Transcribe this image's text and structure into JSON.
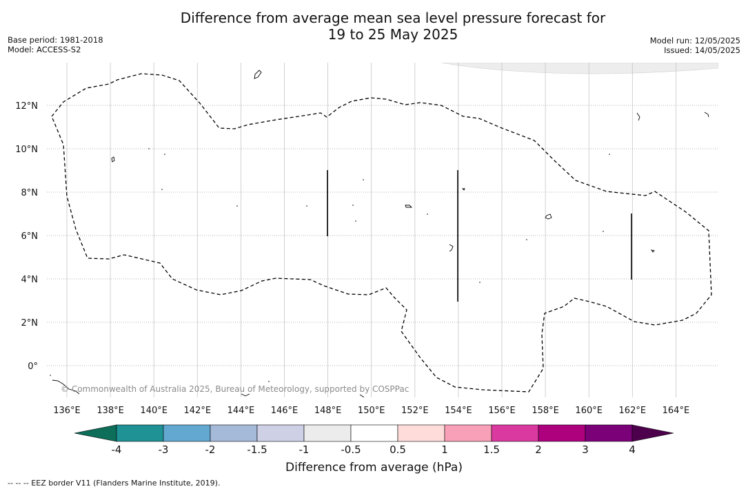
{
  "header": {
    "title_line1": "Difference from average mean sea level pressure forecast for",
    "title_line2": "19 to 25 May 2025",
    "base_period": "Base period: 1981-2018",
    "model": "Model: ACCESS-S2",
    "model_run": "Model run: 12/05/2025",
    "issued": "Issued: 14/05/2025"
  },
  "map": {
    "lon_labels": [
      "136°E",
      "138°E",
      "140°E",
      "142°E",
      "144°E",
      "146°E",
      "148°E",
      "150°E",
      "152°E",
      "154°E",
      "156°E",
      "158°E",
      "160°E",
      "162°E",
      "164°E"
    ],
    "lat_labels": [
      "12°N",
      "10°N",
      "8°N",
      "6°N",
      "4°N",
      "2°N",
      "0°"
    ],
    "copyright": "© Commonwealth of Australia 2025, Bureau of Meteorology, supported by COSPPac",
    "shading_color": "#ededee",
    "border_style": "dashed"
  },
  "colorbar": {
    "ticks": [
      "-4",
      "-3",
      "-2",
      "-1.5",
      "-1",
      "-0.5",
      "0.5",
      "1",
      "1.5",
      "2",
      "3",
      "4"
    ],
    "colors": [
      "#1e9294",
      "#63a8d0",
      "#a5b9d9",
      "#ced0e6",
      "#ececec",
      "#ffffff",
      "#fedcda",
      "#f7a0b7",
      "#da3a9f",
      "#ad017e",
      "#7a0178"
    ],
    "under_color": "#0d6e5a",
    "over_color": "#4d004b",
    "label": "Difference from average (hPa)"
  },
  "footnote": "--  --  -- EEZ border V11 (Flanders Marine Institute, 2019)."
}
